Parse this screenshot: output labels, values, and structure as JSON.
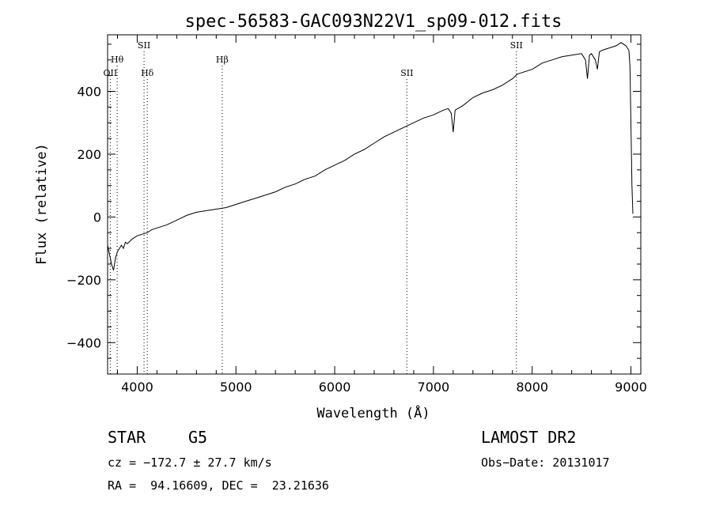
{
  "chart_data": {
    "type": "line",
    "title": "spec-56583-GAC093N22V1_sp09-012.fits",
    "xlabel": "Wavelength (Å)",
    "ylabel": "Flux (relative)",
    "xlim": [
      3700,
      9100
    ],
    "ylim": [
      -500,
      580
    ],
    "xticks": [
      4000,
      5000,
      6000,
      7000,
      8000,
      9000
    ],
    "xtick_labels": [
      "4000",
      "5000",
      "6000",
      "7000",
      "8000",
      "9000"
    ],
    "yticks": [
      -400,
      -200,
      0,
      200,
      400
    ],
    "ytick_labels": [
      "−400",
      "−200",
      "0",
      "200",
      "400"
    ],
    "grid": false,
    "legend": "none",
    "line_color": "#000000",
    "lines": [
      {
        "label": "Hθ",
        "x": 3797,
        "row": 1
      },
      {
        "label": "OII",
        "x": 3727,
        "row": 2
      },
      {
        "label": "SII",
        "x": 4069,
        "row": 0
      },
      {
        "label": "Hδ",
        "x": 4102,
        "row": 2
      },
      {
        "label": "Hβ",
        "x": 4861,
        "row": 1
      },
      {
        "label": "SII",
        "x": 6731,
        "row": 2
      },
      {
        "label": "SII",
        "x": 7840,
        "row": 0
      }
    ],
    "series": [
      {
        "x": [
          3700,
          3720,
          3740,
          3760,
          3780,
          3800,
          3820,
          3840,
          3860,
          3880,
          3900,
          3950,
          4000,
          4050,
          4100,
          4150,
          4200,
          4300,
          4400,
          4500,
          4600,
          4700,
          4800,
          4900,
          5000,
          5100,
          5200,
          5300,
          5400,
          5500,
          5600,
          5700,
          5800,
          5900,
          6000,
          6100,
          6200,
          6300,
          6400,
          6500,
          6600,
          6700,
          6800,
          6900,
          7000,
          7100,
          7150,
          7180,
          7200,
          7220,
          7300,
          7400,
          7500,
          7600,
          7700,
          7800,
          7850,
          7900,
          8000,
          8100,
          8200,
          8300,
          8400,
          8500,
          8540,
          8560,
          8580,
          8600,
          8640,
          8660,
          8680,
          8700,
          8800,
          8850,
          8900,
          8950,
          8980,
          8990,
          9000,
          9010,
          9020
        ],
        "y": [
          -90,
          -120,
          -150,
          -170,
          -130,
          -110,
          -100,
          -90,
          -100,
          -80,
          -85,
          -70,
          -60,
          -55,
          -50,
          -40,
          -35,
          -25,
          -10,
          5,
          15,
          20,
          25,
          30,
          40,
          50,
          60,
          70,
          80,
          95,
          105,
          120,
          130,
          150,
          165,
          180,
          200,
          215,
          235,
          255,
          270,
          285,
          300,
          315,
          325,
          340,
          345,
          330,
          270,
          340,
          355,
          380,
          395,
          405,
          420,
          440,
          455,
          460,
          470,
          490,
          500,
          510,
          515,
          520,
          500,
          440,
          515,
          520,
          500,
          470,
          525,
          530,
          540,
          545,
          555,
          545,
          530,
          480,
          300,
          100,
          10
        ]
      }
    ]
  },
  "info": {
    "class": "STAR",
    "subclass": "G5",
    "survey": "LAMOST DR2",
    "cz": "cz = −172.7 ± 27.7 km/s",
    "obs_date": "Obs−Date: 20131017",
    "radec": "RA =  94.16609, DEC =  23.21636"
  }
}
